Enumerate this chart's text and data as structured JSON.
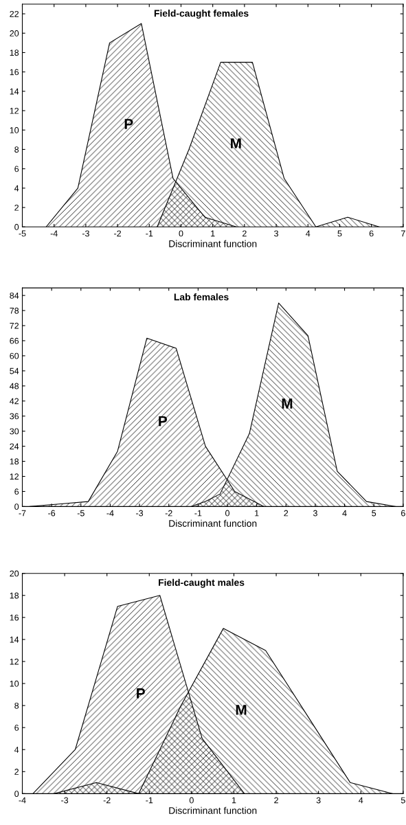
{
  "chart_data": [
    {
      "type": "area",
      "title": "Field-caught females",
      "xlabel": "Discriminant function",
      "xlim": [
        -5,
        7
      ],
      "xticks": [
        -5,
        -4,
        -3,
        -2,
        -1,
        0,
        1,
        2,
        3,
        4,
        5,
        6,
        7
      ],
      "ylim": [
        0,
        23
      ],
      "yticks": [
        0,
        2,
        4,
        6,
        8,
        10,
        12,
        14,
        16,
        18,
        20,
        22
      ],
      "series": [
        {
          "name": "P",
          "color": "#000000",
          "x": [
            -4.25,
            -3.25,
            -2.25,
            -1.25,
            -0.25,
            0.75,
            1.75
          ],
          "values": [
            0,
            4,
            19,
            21,
            5,
            1,
            0
          ]
        },
        {
          "name": "M",
          "color": "#000000",
          "x": [
            -0.75,
            0.25,
            1.25,
            2.25,
            3.25,
            4.25,
            5.25,
            6.25
          ],
          "values": [
            0,
            8,
            17,
            17,
            5,
            0,
            1,
            0
          ]
        }
      ]
    },
    {
      "type": "area",
      "title": "Lab females",
      "xlabel": "Discriminant function",
      "xlim": [
        -7,
        6
      ],
      "xticks": [
        -7,
        -6,
        -5,
        -4,
        -3,
        -2,
        -1,
        0,
        1,
        2,
        3,
        4,
        5,
        6
      ],
      "ylim": [
        0,
        87
      ],
      "yticks": [
        0,
        6,
        12,
        18,
        24,
        30,
        36,
        42,
        48,
        54,
        60,
        66,
        72,
        78,
        84
      ],
      "series": [
        {
          "name": "P",
          "color": "#000000",
          "x": [
            -6.75,
            -5.75,
            -4.75,
            -3.75,
            -2.75,
            -1.75,
            -0.75,
            0.25,
            1.25
          ],
          "values": [
            0,
            1,
            2,
            22,
            67,
            63,
            24,
            6,
            0
          ]
        },
        {
          "name": "M",
          "color": "#000000",
          "x": [
            -1.25,
            -0.75,
            -0.25,
            0.75,
            1.75,
            2.75,
            3.75,
            4.75,
            5.75
          ],
          "values": [
            0,
            2,
            5,
            29,
            81,
            68,
            14,
            2,
            0
          ]
        }
      ]
    },
    {
      "type": "area",
      "title": "Field-caught males",
      "xlabel": "Discriminant function",
      "xlim": [
        -4,
        5
      ],
      "xticks": [
        -4,
        -3,
        -2,
        -1,
        0,
        1,
        2,
        3,
        4,
        5
      ],
      "ylim": [
        0,
        20
      ],
      "yticks": [
        0,
        2,
        4,
        6,
        8,
        10,
        12,
        14,
        16,
        18,
        20
      ],
      "series": [
        {
          "name": "P",
          "color": "#000000",
          "x": [
            -3.75,
            -2.75,
            -1.75,
            -0.75,
            0.25,
            1.25
          ],
          "values": [
            0,
            4,
            17,
            18,
            5,
            0
          ]
        },
        {
          "name": "M",
          "color": "#000000",
          "x": [
            -3.25,
            -2.25,
            -1.25,
            -0.25,
            0.75,
            1.75,
            2.75,
            3.75,
            4.75
          ],
          "values": [
            0,
            1,
            0,
            8,
            15,
            13,
            7,
            1,
            0
          ]
        }
      ]
    }
  ]
}
